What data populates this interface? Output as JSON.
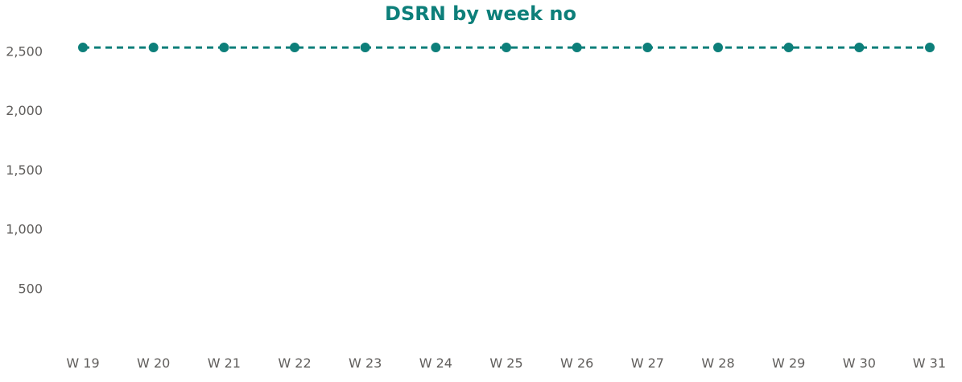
{
  "chart_data": {
    "type": "line",
    "title": "DSRN by week no",
    "xlabel": "",
    "ylabel": "",
    "categories": [
      "W 19",
      "W 20",
      "W 21",
      "W 22",
      "W 23",
      "W 24",
      "W 25",
      "W 26",
      "W 27",
      "W 28",
      "W 29",
      "W 30",
      "W 31"
    ],
    "series": [
      {
        "values": [
          2530,
          2530,
          2530,
          2530,
          2530,
          2530,
          2530,
          2530,
          2530,
          2530,
          2530,
          2530,
          2530
        ],
        "color": "#0d7f7a",
        "line_style": "dashed",
        "markers": "circle"
      }
    ],
    "ylim": [
      0,
      2700
    ],
    "yticks": [
      500,
      1000,
      1500,
      2000,
      2500
    ],
    "ytick_labels": [
      "500",
      "1,000",
      "1,500",
      "2,000",
      "2,500"
    ],
    "grid": false,
    "legend": "none"
  },
  "colors": {
    "accent": "#0d7f7a",
    "axis_text": "#605e5c"
  }
}
